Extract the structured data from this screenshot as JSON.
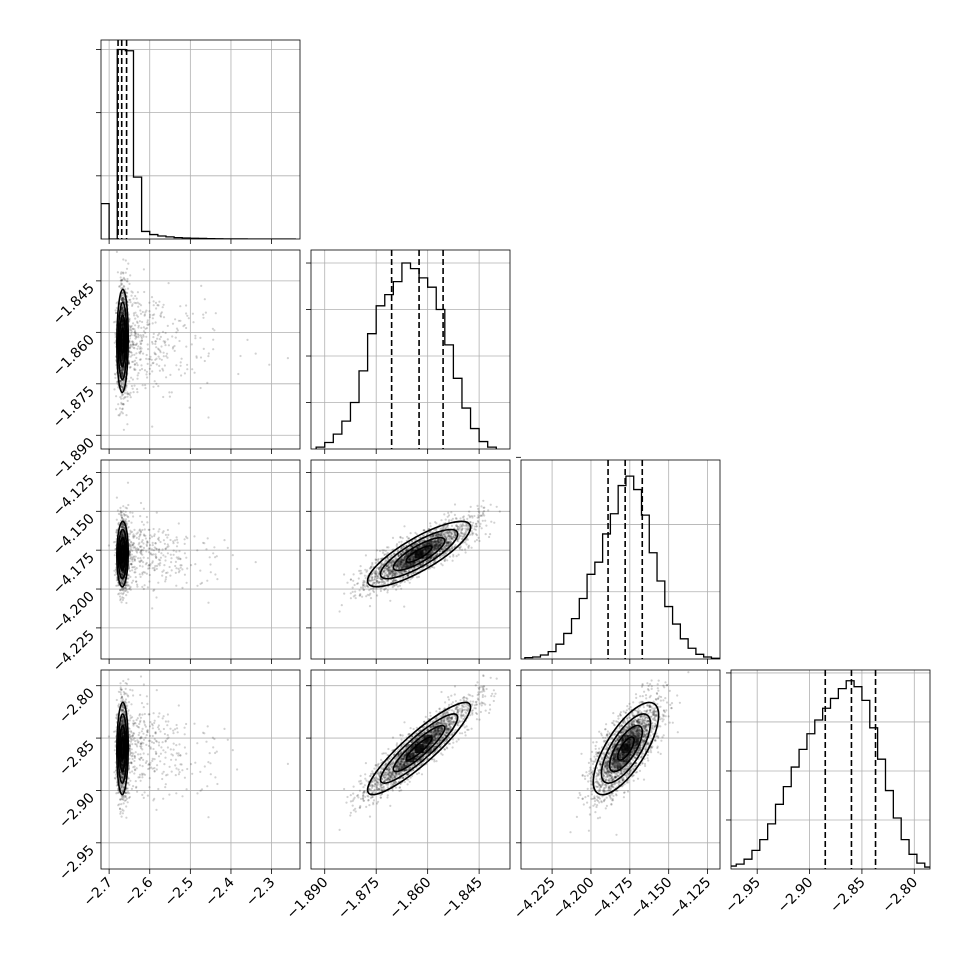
{
  "chart_data": {
    "type": "corner",
    "grid": true,
    "parameters": [
      {
        "range": [
          -2.72,
          -2.23
        ],
        "ticks": [
          -2.7,
          -2.6,
          -2.5,
          -2.4,
          -2.3
        ],
        "tick_labels": [
          "−2.7",
          "−2.6",
          "−2.5",
          "−2.4",
          "−2.3"
        ],
        "quantiles": [
          -2.678,
          -2.669,
          -2.657
        ],
        "hist_edges": [
          -2.72,
          -2.7,
          -2.68,
          -2.66,
          -2.64,
          -2.62,
          -2.6,
          -2.58,
          -2.56,
          -2.54,
          -2.52,
          -2.5,
          -2.48,
          -2.46,
          -2.44,
          -2.42,
          -2.4,
          -2.38,
          -2.36,
          -2.34,
          -2.32,
          -2.3,
          -2.28,
          -2.26,
          -2.24
        ],
        "hist_counts": [
          560,
          0,
          3000,
          2980,
          980,
          120,
          70,
          48,
          34,
          22,
          16,
          12,
          9,
          5,
          3,
          2,
          1,
          1,
          0,
          0,
          0,
          0,
          0,
          0
        ],
        "hist_ylim": [
          0,
          3150
        ],
        "hist_yticks": [
          1000,
          2000,
          3000
        ],
        "mean": -2.667,
        "sd": 0.007
      },
      {
        "range": [
          -1.894,
          -1.836
        ],
        "ticks": [
          -1.89,
          -1.875,
          -1.86,
          -1.845
        ],
        "tick_labels": [
          "−1.890",
          "−1.875",
          "−1.860",
          "−1.845"
        ],
        "quantiles": [
          -1.8705,
          -1.8625,
          -1.8555
        ],
        "hist_edges": [
          -1.8925,
          -1.89,
          -1.8875,
          -1.885,
          -1.8825,
          -1.88,
          -1.8775,
          -1.875,
          -1.8725,
          -1.87,
          -1.8675,
          -1.865,
          -1.8625,
          -1.86,
          -1.8575,
          -1.855,
          -1.8525,
          -1.85,
          -1.8475,
          -1.845,
          -1.8425,
          -1.84
        ],
        "hist_counts": [
          10,
          35,
          80,
          150,
          250,
          420,
          620,
          770,
          830,
          900,
          1000,
          970,
          920,
          870,
          750,
          560,
          380,
          220,
          110,
          40,
          10
        ],
        "hist_ylim": [
          0,
          1070
        ],
        "hist_yticks": [
          250,
          500,
          750,
          1000
        ],
        "mean": -1.8625,
        "sd": 0.0075
      },
      {
        "range": [
          -4.245,
          -4.117
        ],
        "ticks": [
          -4.225,
          -4.2,
          -4.175,
          -4.15,
          -4.125
        ],
        "tick_labels": [
          "−4.225",
          "−4.200",
          "−4.175",
          "−4.150",
          "−4.125"
        ],
        "quantiles": [
          -4.189,
          -4.178,
          -4.167
        ],
        "hist_edges": [
          -4.2425,
          -4.2375,
          -4.2325,
          -4.2275,
          -4.2225,
          -4.2175,
          -4.2125,
          -4.2075,
          -4.2025,
          -4.1975,
          -4.1925,
          -4.1875,
          -4.1825,
          -4.1775,
          -4.1725,
          -4.1675,
          -4.1625,
          -4.1575,
          -4.1525,
          -4.1475,
          -4.1425,
          -4.1375,
          -4.1325,
          -4.1275,
          -4.1225,
          -4.1175
        ],
        "hist_counts": [
          10,
          15,
          30,
          55,
          110,
          190,
          300,
          450,
          630,
          720,
          930,
          1080,
          1290,
          1360,
          1260,
          1070,
          790,
          580,
          390,
          260,
          150,
          80,
          35,
          15,
          5
        ],
        "hist_ylim": [
          0,
          1480
        ],
        "hist_yticks": [
          500,
          1000,
          1500
        ],
        "mean": -4.1775,
        "sd": 0.0105
      },
      {
        "range": [
          -2.975,
          -2.785
        ],
        "ticks": [
          -2.95,
          -2.9,
          -2.85,
          -2.8
        ],
        "tick_labels": [
          "−2.95",
          "−2.90",
          "−2.85",
          "−2.80"
        ],
        "quantiles": [
          -2.885,
          -2.86,
          -2.837
        ],
        "hist_edges": [
          -2.9775,
          -2.97,
          -2.9625,
          -2.955,
          -2.9475,
          -2.94,
          -2.9325,
          -2.925,
          -2.9175,
          -2.91,
          -2.9025,
          -2.895,
          -2.8875,
          -2.88,
          -2.8725,
          -2.865,
          -2.8575,
          -2.85,
          -2.8425,
          -2.835,
          -2.8275,
          -2.82,
          -2.8125,
          -2.805,
          -2.7975,
          -2.79,
          -2.7825
        ],
        "hist_counts": [
          15,
          25,
          50,
          95,
          150,
          230,
          330,
          420,
          520,
          610,
          690,
          760,
          820,
          870,
          920,
          960,
          930,
          860,
          720,
          560,
          400,
          260,
          150,
          75,
          30,
          10
        ],
        "hist_ylim": [
          0,
          1015
        ],
        "hist_yticks": [
          250,
          500,
          750,
          1000
        ],
        "mean": -2.86,
        "sd": 0.022
      }
    ],
    "correlations": [
      [
        1,
        0.05,
        0.05,
        0.05
      ],
      [
        0.05,
        1,
        0.82,
        0.9
      ],
      [
        0.05,
        0.82,
        1,
        0.72
      ],
      [
        0.05,
        0.9,
        0.72,
        1
      ]
    ],
    "contour_levels_sigma": [
      0.5,
      1,
      1.5,
      2
    ]
  }
}
